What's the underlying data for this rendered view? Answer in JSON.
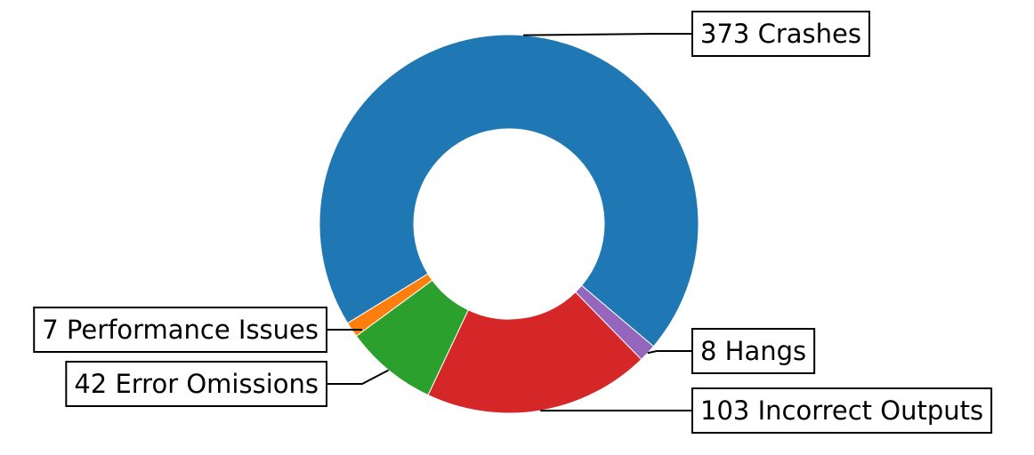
{
  "chart_data": {
    "type": "donut",
    "values": [
      373,
      7,
      42,
      103,
      8
    ],
    "value_labels": [
      "373 Crashes",
      "7 Performance Issues",
      "42 Error Omissions",
      "103 Incorrect Outputs",
      "8 Hangs"
    ],
    "colors": [
      "#1f77b4",
      "#ff7f0e",
      "#2ca02c",
      "#d62728",
      "#9467bd"
    ]
  }
}
